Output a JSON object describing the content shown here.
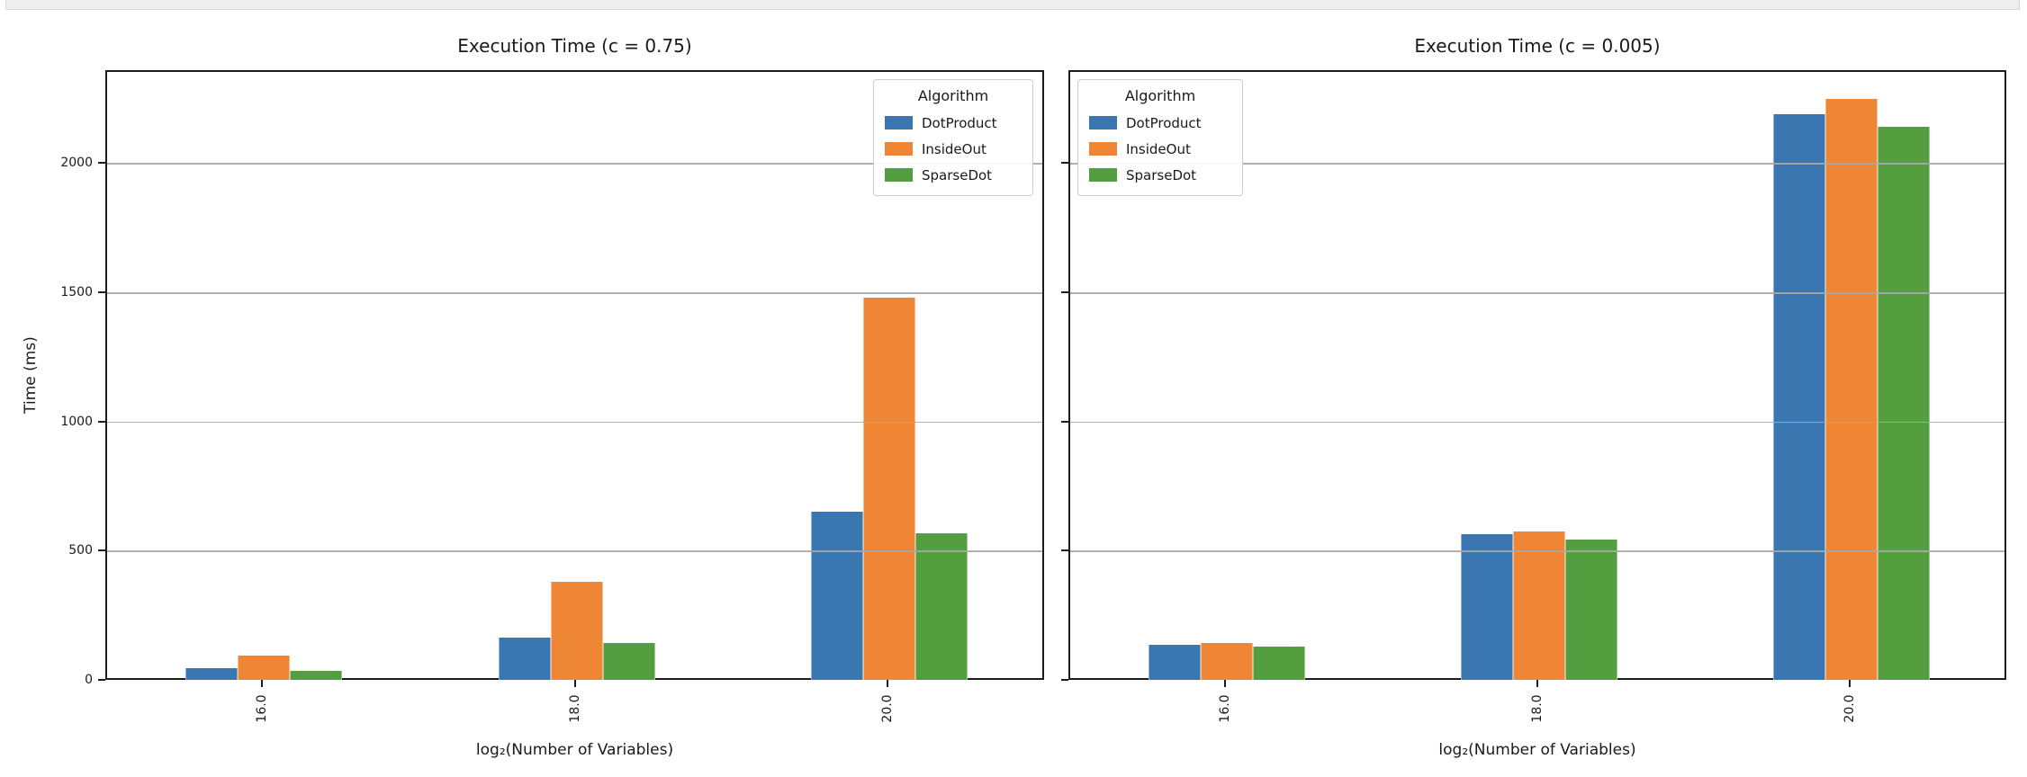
{
  "chart_data": [
    {
      "type": "bar",
      "title": "Execution Time (c = 0.75)",
      "xlabel": "log₂(Number of Variables)",
      "ylabel": "Time (ms)",
      "categories": [
        "16.0",
        "18.0",
        "20.0"
      ],
      "series": [
        {
          "name": "DotProduct",
          "color": "#3a76af",
          "values": [
            44,
            165,
            652
          ]
        },
        {
          "name": "InsideOut",
          "color": "#ef8636",
          "values": [
            94,
            378,
            1480
          ]
        },
        {
          "name": "SparseDot",
          "color": "#539e3e",
          "values": [
            34,
            142,
            568
          ]
        }
      ],
      "legend": {
        "title": "Algorithm",
        "position": "upper right"
      },
      "yticks": [
        0,
        500,
        1000,
        1500,
        2000
      ],
      "show_ytick_labels": true,
      "ylim": [
        0,
        2360
      ],
      "grid": true
    },
    {
      "type": "bar",
      "title": "Execution Time (c = 0.005)",
      "xlabel": "log₂(Number of Variables)",
      "ylabel": "",
      "categories": [
        "16.0",
        "18.0",
        "20.0"
      ],
      "series": [
        {
          "name": "DotProduct",
          "color": "#3a76af",
          "values": [
            135,
            563,
            2190
          ]
        },
        {
          "name": "InsideOut",
          "color": "#ef8636",
          "values": [
            142,
            573,
            2247
          ]
        },
        {
          "name": "SparseDot",
          "color": "#539e3e",
          "values": [
            130,
            543,
            2140
          ]
        }
      ],
      "legend": {
        "title": "Algorithm",
        "position": "upper left"
      },
      "yticks": [
        0,
        500,
        1000,
        1500,
        2000
      ],
      "show_ytick_labels": false,
      "ylim": [
        0,
        2360
      ],
      "grid": true
    }
  ]
}
